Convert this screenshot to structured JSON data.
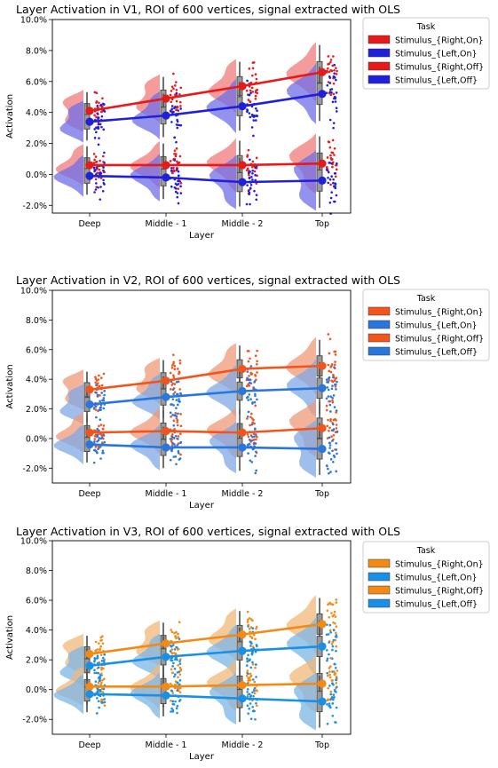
{
  "chart_data": [
    {
      "type": "line",
      "title": "Layer Activation in V1, ROI of 600 vertices, signal extracted with OLS",
      "xlabel": "Layer",
      "ylabel": "Activation",
      "categories": [
        "Deep",
        "Middle - 1",
        "Middle - 2",
        "Top"
      ],
      "ylim": [
        -2.5,
        10.0
      ],
      "yticks": [
        "-2.0%",
        "0.0%",
        "2.0%",
        "4.0%",
        "6.0%",
        "8.0%",
        "10.0%"
      ],
      "grid": false,
      "legend": {
        "title": "Task",
        "position": "outside-right"
      },
      "colors": {
        "right": "#e8191b",
        "left": "#1f1fdc",
        "right_area": "#f07a7a",
        "left_area": "#6f6fe8"
      },
      "series": [
        {
          "name": "Stimulus_{Right,On}",
          "values": [
            4.1,
            4.9,
            5.7,
            6.6
          ]
        },
        {
          "name": "Stimulus_{Left,On}",
          "values": [
            3.4,
            3.8,
            4.4,
            5.2
          ]
        },
        {
          "name": "Stimulus_{Right,Off}",
          "values": [
            0.6,
            0.6,
            0.6,
            0.7
          ]
        },
        {
          "name": "Stimulus_{Left,Off}",
          "values": [
            -0.1,
            -0.2,
            -0.5,
            -0.4
          ]
        }
      ]
    },
    {
      "type": "line",
      "title": "Layer Activation in V2, ROI of 600 vertices, signal extracted with OLS",
      "xlabel": "Layer",
      "ylabel": "Activation",
      "categories": [
        "Deep",
        "Middle - 1",
        "Middle - 2",
        "Top"
      ],
      "ylim": [
        -3.0,
        10.0
      ],
      "yticks": [
        "-2.0%",
        "0.0%",
        "2.0%",
        "4.0%",
        "6.0%",
        "8.0%",
        "10.0%"
      ],
      "grid": false,
      "legend": {
        "title": "Task",
        "position": "outside-right"
      },
      "colors": {
        "right": "#f2541c",
        "left": "#2a76dc",
        "right_area": "#ef9a7a",
        "left_area": "#7fa8e6"
      },
      "series": [
        {
          "name": "Stimulus_{Right,On}",
          "values": [
            3.3,
            3.9,
            4.7,
            4.9
          ]
        },
        {
          "name": "Stimulus_{Left,On}",
          "values": [
            2.3,
            2.8,
            3.2,
            3.4
          ]
        },
        {
          "name": "Stimulus_{Right,Off}",
          "values": [
            0.4,
            0.5,
            0.4,
            0.7
          ]
        },
        {
          "name": "Stimulus_{Left,Off}",
          "values": [
            -0.4,
            -0.6,
            -0.6,
            -0.7
          ]
        }
      ]
    },
    {
      "type": "line",
      "title": "Layer Activation in V3, ROI of 600 vertices, signal extracted with OLS",
      "xlabel": "Layer",
      "ylabel": "Activation",
      "categories": [
        "Deep",
        "Middle - 1",
        "Middle - 2",
        "Top"
      ],
      "ylim": [
        -3.0,
        10.0
      ],
      "yticks": [
        "-2.0%",
        "0.0%",
        "2.0%",
        "4.0%",
        "6.0%",
        "8.0%",
        "10.0%"
      ],
      "grid": false,
      "legend": {
        "title": "Task",
        "position": "outside-right"
      },
      "colors": {
        "right": "#f38a14",
        "left": "#1890e6",
        "right_area": "#f2b87a",
        "left_area": "#7bb6e6"
      },
      "series": [
        {
          "name": "Stimulus_{Right,On}",
          "values": [
            2.4,
            3.1,
            3.7,
            4.4
          ]
        },
        {
          "name": "Stimulus_{Left,On}",
          "values": [
            1.6,
            2.2,
            2.6,
            2.9
          ]
        },
        {
          "name": "Stimulus_{Right,Off}",
          "values": [
            0.2,
            0.2,
            0.3,
            0.4
          ]
        },
        {
          "name": "Stimulus_{Left,Off}",
          "values": [
            -0.3,
            -0.4,
            -0.6,
            -0.8
          ]
        }
      ]
    }
  ]
}
